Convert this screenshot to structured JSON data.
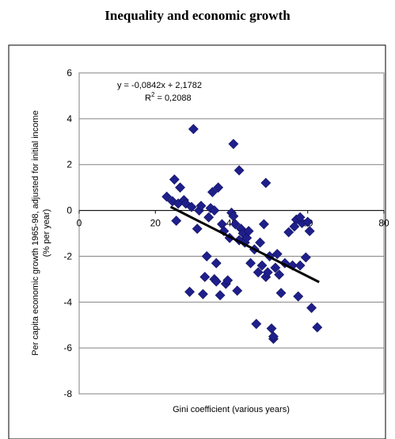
{
  "chart_data": {
    "type": "scatter",
    "title": "Inequality and economic growth",
    "xlabel": "Gini coefficient (various years)",
    "ylabel_line1": "Per capita economic growth 1965-98, adjusted for initial income",
    "ylabel_line2": "(% per year)",
    "xlim": [
      0,
      80
    ],
    "ylim": [
      -8,
      6
    ],
    "xticks": [
      0,
      20,
      40,
      60,
      80
    ],
    "yticks": [
      6,
      4,
      2,
      0,
      -2,
      -4,
      -6,
      -8
    ],
    "xtick_labels": [
      "0",
      "20",
      "40",
      "60",
      "80"
    ],
    "ytick_labels": [
      "6",
      "4",
      "2",
      "0",
      "-2",
      "-4",
      "-6",
      "-8"
    ],
    "grid": "horizontal",
    "marker_color": "#1f1f8c",
    "trendline": {
      "slope": -0.0842,
      "intercept": 2.1782,
      "x_range": [
        24,
        63
      ],
      "color": "#000000"
    },
    "equation_text": "y = -0,0842x + 2,1782",
    "r2_prefix": "R",
    "r2_sup": "2",
    "r2_value": " = 0,2088",
    "points": [
      [
        23,
        0.6
      ],
      [
        24.5,
        0.4
      ],
      [
        25,
        1.35
      ],
      [
        25.5,
        -0.45
      ],
      [
        26,
        0.3
      ],
      [
        26.5,
        1.0
      ],
      [
        27.5,
        0.45
      ],
      [
        28,
        0.3
      ],
      [
        29,
        -3.55
      ],
      [
        29.5,
        0.15
      ],
      [
        30,
        3.55
      ],
      [
        31,
        -0.8
      ],
      [
        31.5,
        0.0
      ],
      [
        32,
        0.2
      ],
      [
        32.5,
        -3.65
      ],
      [
        33,
        -2.9
      ],
      [
        33.5,
        -2.0
      ],
      [
        34,
        -0.3
      ],
      [
        34.5,
        0.1
      ],
      [
        35,
        0.8
      ],
      [
        35.5,
        0.0
      ],
      [
        35.5,
        -3.0
      ],
      [
        36,
        -2.3
      ],
      [
        36,
        -3.1
      ],
      [
        36.5,
        1.0
      ],
      [
        37,
        -3.7
      ],
      [
        37.5,
        -0.6
      ],
      [
        38,
        -0.9
      ],
      [
        38.5,
        -3.2
      ],
      [
        39,
        -3.05
      ],
      [
        39.5,
        -1.2
      ],
      [
        40,
        -0.1
      ],
      [
        40.5,
        -0.25
      ],
      [
        40.5,
        2.9
      ],
      [
        41,
        -0.6
      ],
      [
        41.5,
        -3.5
      ],
      [
        42,
        1.75
      ],
      [
        42,
        -1.3
      ],
      [
        42.5,
        -0.8
      ],
      [
        43,
        -1.0
      ],
      [
        43.5,
        -1.4
      ],
      [
        44,
        -1.2
      ],
      [
        44.5,
        -0.9
      ],
      [
        45,
        -2.3
      ],
      [
        46,
        -1.7
      ],
      [
        46.5,
        -4.95
      ],
      [
        47,
        -2.7
      ],
      [
        47.5,
        -1.4
      ],
      [
        48,
        -2.4
      ],
      [
        48.5,
        -0.6
      ],
      [
        49,
        -2.9
      ],
      [
        49,
        1.2
      ],
      [
        49.5,
        -2.7
      ],
      [
        50,
        -2.0
      ],
      [
        50.5,
        -5.15
      ],
      [
        51,
        -5.6
      ],
      [
        51,
        -5.5
      ],
      [
        51.5,
        -2.5
      ],
      [
        52,
        -1.9
      ],
      [
        52.5,
        -2.8
      ],
      [
        53,
        -3.6
      ],
      [
        54,
        -2.3
      ],
      [
        55,
        -0.95
      ],
      [
        56,
        -2.4
      ],
      [
        57,
        -0.4
      ],
      [
        57.5,
        -3.75
      ],
      [
        58,
        -2.4
      ],
      [
        58.5,
        -0.55
      ],
      [
        59.5,
        -2.05
      ],
      [
        60,
        -0.5
      ],
      [
        60.5,
        -0.9
      ],
      [
        61,
        -4.25
      ],
      [
        62.5,
        -5.1
      ],
      [
        56.5,
        -0.7
      ],
      [
        58,
        -0.3
      ]
    ]
  }
}
